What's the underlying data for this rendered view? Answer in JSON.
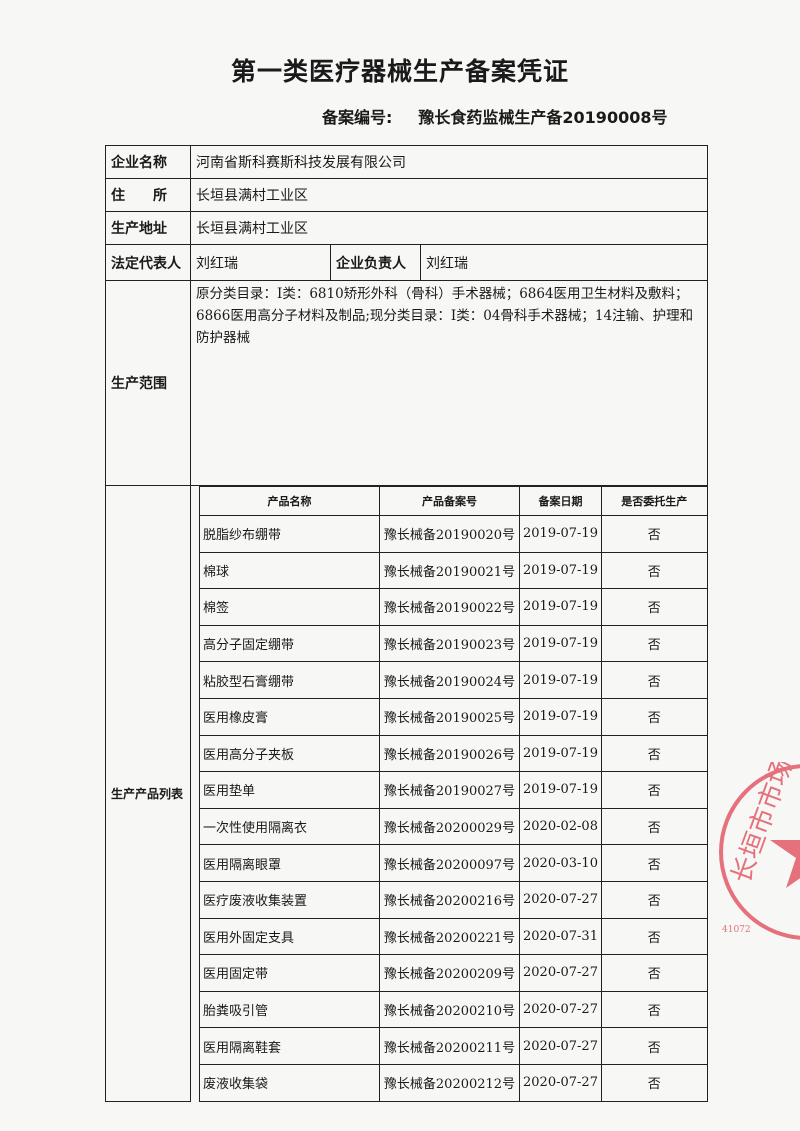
{
  "title": "第一类医疗器械生产备案凭证",
  "record_label": "备案编号:",
  "record_number": "豫长食药监械生产备20190008号",
  "fields": {
    "company_label": "企业名称",
    "company": "河南省斯科赛斯科技发展有限公司",
    "address_label": "住　　所",
    "address": "长垣县满村工业区",
    "site_label": "生产地址",
    "site": "长垣县满村工业区",
    "legal_rep_label": "法定代表人",
    "legal_rep": "刘红瑞",
    "head_label": "企业负责人",
    "head": "刘红瑞",
    "scope_label": "生产范围",
    "scope": "原分类目录：Ⅰ类：6810矫形外科（骨科）手术器械；6864医用卫生材料及敷料；6866医用高分子材料及制品;现分类目录：Ⅰ类：04骨科手术器械；14注输、护理和防护器械"
  },
  "products_label": "生产产品列表",
  "product_headers": [
    "产品名称",
    "产品备案号",
    "备案日期",
    "是否委托生产"
  ],
  "products": [
    [
      "脱脂纱布绷带",
      "豫长械备20190020号",
      "2019-07-19",
      "否"
    ],
    [
      "棉球",
      "豫长械备20190021号",
      "2019-07-19",
      "否"
    ],
    [
      "棉签",
      "豫长械备20190022号",
      "2019-07-19",
      "否"
    ],
    [
      "高分子固定绷带",
      "豫长械备20190023号",
      "2019-07-19",
      "否"
    ],
    [
      "粘胶型石膏绷带",
      "豫长械备20190024号",
      "2019-07-19",
      "否"
    ],
    [
      "医用橡皮膏",
      "豫长械备20190025号",
      "2019-07-19",
      "否"
    ],
    [
      "医用高分子夹板",
      "豫长械备20190026号",
      "2019-07-19",
      "否"
    ],
    [
      "医用垫单",
      "豫长械备20190027号",
      "2019-07-19",
      "否"
    ],
    [
      "一次性使用隔离衣",
      "豫长械备20200029号",
      "2020-02-08",
      "否"
    ],
    [
      "医用隔离眼罩",
      "豫长械备20200097号",
      "2020-03-10",
      "否"
    ],
    [
      "医疗废液收集装置",
      "豫长械备20200216号",
      "2020-07-27",
      "否"
    ],
    [
      "医用外固定支具",
      "豫长械备20200221号",
      "2020-07-31",
      "否"
    ],
    [
      "医用固定带",
      "豫长械备20200209号",
      "2020-07-27",
      "否"
    ],
    [
      "胎粪吸引管",
      "豫长械备20200210号",
      "2020-07-27",
      "否"
    ],
    [
      "医用隔离鞋套",
      "豫长械备20200211号",
      "2020-07-27",
      "否"
    ],
    [
      "废液收集袋",
      "豫长械备20200212号",
      "2020-07-27",
      "否"
    ]
  ],
  "stamp": {
    "text": "长垣市市场监",
    "code": "41072",
    "color": "#e0505e"
  }
}
